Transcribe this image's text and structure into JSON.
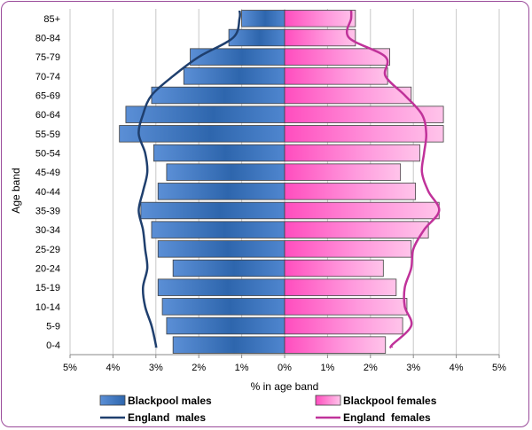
{
  "chart_data": {
    "type": "bar",
    "subtype": "population-pyramid",
    "title": "",
    "xlabel": "% in age band",
    "ylabel": "Age band",
    "xlim": [
      -5,
      5
    ],
    "x_ticks": [
      -5,
      -4,
      -3,
      -2,
      -1,
      0,
      1,
      2,
      3,
      4,
      5
    ],
    "x_tick_labels": [
      "5%",
      "4%",
      "3%",
      "2%",
      "1%",
      "0%",
      "1%",
      "2%",
      "3%",
      "4%",
      "5%"
    ],
    "grid": "vertical",
    "legend_position": "bottom",
    "categories": [
      "0-4",
      "5-9",
      "10-14",
      "15-19",
      "20-24",
      "25-29",
      "30-34",
      "35-39",
      "40-44",
      "45-49",
      "50-54",
      "55-59",
      "60-64",
      "65-69",
      "70-74",
      "75-79",
      "80-84",
      "85+"
    ],
    "series": [
      {
        "name": "Blackpool males",
        "kind": "bar",
        "side": "left",
        "color": "#3d73b8",
        "values": [
          2.6,
          2.75,
          2.85,
          2.95,
          2.6,
          2.95,
          3.1,
          3.35,
          2.95,
          2.75,
          3.05,
          3.85,
          3.7,
          3.1,
          2.35,
          2.2,
          1.3,
          1.0
        ]
      },
      {
        "name": "Blackpool females",
        "kind": "bar",
        "side": "right",
        "color": "#ff66cc",
        "values": [
          2.35,
          2.75,
          2.85,
          2.6,
          2.3,
          2.95,
          3.35,
          3.6,
          3.05,
          2.7,
          3.15,
          3.7,
          3.7,
          2.95,
          2.4,
          2.45,
          1.65,
          1.65
        ]
      },
      {
        "name": "England  males",
        "kind": "line",
        "side": "left",
        "color": "#1f3f6e",
        "values": [
          3.0,
          3.1,
          3.25,
          3.3,
          3.2,
          3.25,
          3.3,
          3.4,
          3.3,
          3.2,
          3.25,
          3.4,
          3.3,
          3.1,
          2.6,
          2.0,
          1.2,
          1.05
        ]
      },
      {
        "name": "England  females",
        "kind": "line",
        "side": "right",
        "color": "#c0329a",
        "values": [
          2.5,
          2.95,
          2.8,
          2.8,
          2.95,
          3.0,
          3.25,
          3.6,
          3.35,
          3.2,
          3.25,
          3.3,
          3.2,
          2.8,
          2.35,
          2.35,
          1.5,
          1.55
        ]
      }
    ]
  }
}
